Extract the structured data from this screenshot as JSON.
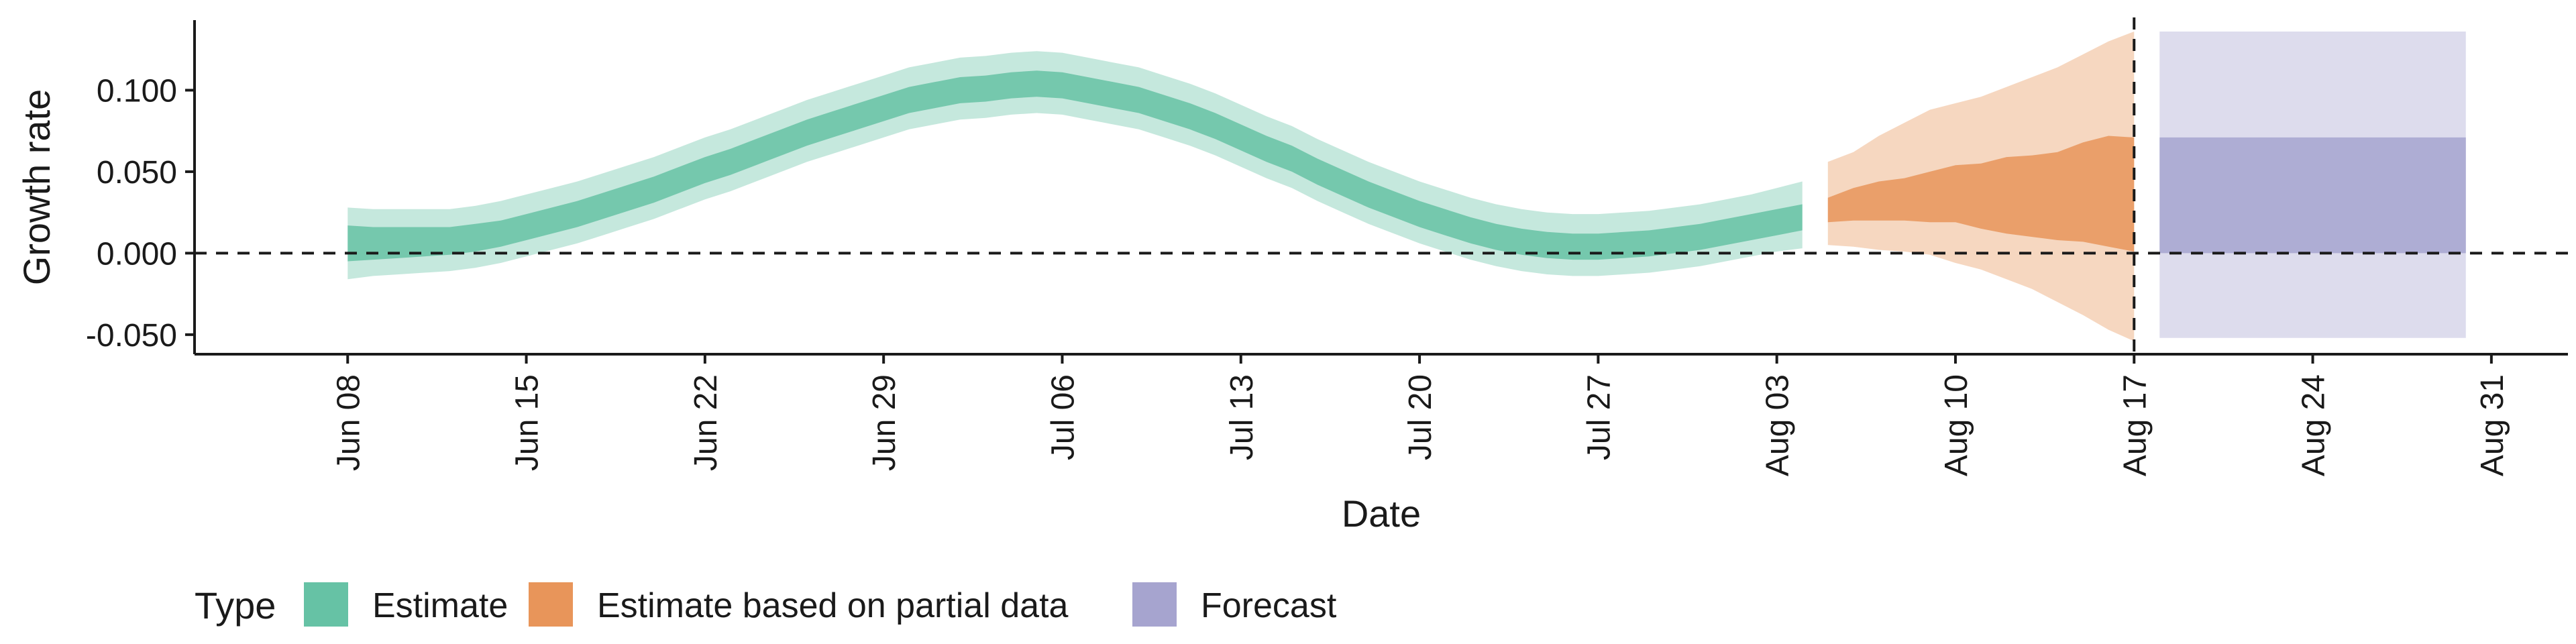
{
  "chart_data": {
    "type": "area",
    "title": "",
    "xlabel": "Date",
    "ylabel": "Growth rate",
    "ylim": [
      -0.062,
      0.143
    ],
    "xlim": [
      "2020-06-02",
      "2020-09-03"
    ],
    "y_ticks": [
      -0.05,
      0.0,
      0.05,
      0.1
    ],
    "y_tick_labels": [
      "-0.050",
      "0.000",
      "0.050",
      "0.100"
    ],
    "x_ticks": [
      "2020-06-08",
      "2020-06-15",
      "2020-06-22",
      "2020-06-29",
      "2020-07-06",
      "2020-07-13",
      "2020-07-20",
      "2020-07-27",
      "2020-08-03",
      "2020-08-10",
      "2020-08-17",
      "2020-08-24",
      "2020-08-31"
    ],
    "x_tick_labels": [
      "Jun 08",
      "Jun 15",
      "Jun 22",
      "Jun 29",
      "Jul 06",
      "Jul 13",
      "Jul 20",
      "Jul 27",
      "Aug 03",
      "Aug 10",
      "Aug 17",
      "Aug 24",
      "Aug 31"
    ],
    "reference_lines": [
      {
        "axis": "y",
        "value": 0.0,
        "style": "dashed"
      },
      {
        "axis": "x",
        "value": "2020-08-17",
        "style": "dashed"
      }
    ],
    "grid": false,
    "legend": {
      "title": "Type",
      "position": "bottom-left",
      "entries": [
        {
          "label": "Estimate",
          "color": "#66c2a5"
        },
        {
          "label": "Estimate based on partial data",
          "color": "#e8955a"
        },
        {
          "label": "Forecast",
          "color": "#a6a4cf"
        }
      ]
    },
    "series": [
      {
        "name": "Estimate",
        "color": "#66c2a5",
        "x": [
          "2020-06-08",
          "2020-06-09",
          "2020-06-10",
          "2020-06-11",
          "2020-06-12",
          "2020-06-13",
          "2020-06-14",
          "2020-06-15",
          "2020-06-16",
          "2020-06-17",
          "2020-06-18",
          "2020-06-19",
          "2020-06-20",
          "2020-06-21",
          "2020-06-22",
          "2020-06-23",
          "2020-06-24",
          "2020-06-25",
          "2020-06-26",
          "2020-06-27",
          "2020-06-28",
          "2020-06-29",
          "2020-06-30",
          "2020-07-01",
          "2020-07-02",
          "2020-07-03",
          "2020-07-04",
          "2020-07-05",
          "2020-07-06",
          "2020-07-07",
          "2020-07-08",
          "2020-07-09",
          "2020-07-10",
          "2020-07-11",
          "2020-07-12",
          "2020-07-13",
          "2020-07-14",
          "2020-07-15",
          "2020-07-16",
          "2020-07-17",
          "2020-07-18",
          "2020-07-19",
          "2020-07-20",
          "2020-07-21",
          "2020-07-22",
          "2020-07-23",
          "2020-07-24",
          "2020-07-25",
          "2020-07-26",
          "2020-07-27",
          "2020-07-28",
          "2020-07-29",
          "2020-07-30",
          "2020-07-31",
          "2020-08-01",
          "2020-08-02",
          "2020-08-03",
          "2020-08-04"
        ],
        "lower_90": [
          -0.016,
          -0.014,
          -0.013,
          -0.012,
          -0.011,
          -0.009,
          -0.006,
          -0.002,
          0.002,
          0.006,
          0.011,
          0.016,
          0.021,
          0.027,
          0.033,
          0.038,
          0.044,
          0.05,
          0.056,
          0.061,
          0.066,
          0.071,
          0.076,
          0.079,
          0.082,
          0.083,
          0.085,
          0.086,
          0.085,
          0.082,
          0.079,
          0.076,
          0.071,
          0.066,
          0.06,
          0.053,
          0.046,
          0.04,
          0.032,
          0.025,
          0.018,
          0.012,
          0.006,
          0.001,
          -0.004,
          -0.008,
          -0.011,
          -0.013,
          -0.014,
          -0.014,
          -0.013,
          -0.012,
          -0.01,
          -0.008,
          -0.005,
          -0.002,
          0.001,
          0.003
        ],
        "lower_50": [
          -0.005,
          -0.004,
          -0.003,
          -0.002,
          -0.001,
          0.001,
          0.004,
          0.008,
          0.012,
          0.016,
          0.021,
          0.026,
          0.031,
          0.037,
          0.043,
          0.048,
          0.054,
          0.06,
          0.066,
          0.071,
          0.076,
          0.081,
          0.086,
          0.089,
          0.092,
          0.093,
          0.095,
          0.096,
          0.095,
          0.092,
          0.089,
          0.086,
          0.081,
          0.076,
          0.07,
          0.063,
          0.056,
          0.05,
          0.042,
          0.035,
          0.028,
          0.022,
          0.016,
          0.011,
          0.006,
          0.002,
          -0.001,
          -0.003,
          -0.004,
          -0.004,
          -0.003,
          -0.002,
          0.0,
          0.002,
          0.005,
          0.008,
          0.011,
          0.014
        ],
        "upper_50": [
          0.017,
          0.016,
          0.016,
          0.016,
          0.016,
          0.018,
          0.02,
          0.024,
          0.028,
          0.032,
          0.037,
          0.042,
          0.047,
          0.053,
          0.059,
          0.064,
          0.07,
          0.076,
          0.082,
          0.087,
          0.092,
          0.097,
          0.102,
          0.105,
          0.108,
          0.109,
          0.111,
          0.112,
          0.111,
          0.108,
          0.105,
          0.102,
          0.097,
          0.092,
          0.086,
          0.079,
          0.072,
          0.066,
          0.058,
          0.051,
          0.044,
          0.038,
          0.032,
          0.027,
          0.022,
          0.018,
          0.015,
          0.013,
          0.012,
          0.012,
          0.013,
          0.014,
          0.016,
          0.018,
          0.021,
          0.024,
          0.027,
          0.03
        ],
        "upper_90": [
          0.028,
          0.027,
          0.027,
          0.027,
          0.027,
          0.029,
          0.032,
          0.036,
          0.04,
          0.044,
          0.049,
          0.054,
          0.059,
          0.065,
          0.071,
          0.076,
          0.082,
          0.088,
          0.094,
          0.099,
          0.104,
          0.109,
          0.114,
          0.117,
          0.12,
          0.121,
          0.123,
          0.124,
          0.123,
          0.12,
          0.117,
          0.114,
          0.109,
          0.104,
          0.098,
          0.091,
          0.084,
          0.078,
          0.07,
          0.063,
          0.056,
          0.05,
          0.044,
          0.039,
          0.034,
          0.03,
          0.027,
          0.025,
          0.024,
          0.024,
          0.025,
          0.026,
          0.028,
          0.03,
          0.033,
          0.036,
          0.04,
          0.044
        ]
      },
      {
        "name": "Estimate based on partial data",
        "color": "#e8955a",
        "x": [
          "2020-08-05",
          "2020-08-06",
          "2020-08-07",
          "2020-08-08",
          "2020-08-09",
          "2020-08-10",
          "2020-08-11",
          "2020-08-12",
          "2020-08-13",
          "2020-08-14",
          "2020-08-15",
          "2020-08-16",
          "2020-08-17"
        ],
        "lower_90": [
          0.005,
          0.004,
          0.002,
          0.001,
          -0.001,
          -0.006,
          -0.01,
          -0.016,
          -0.022,
          -0.03,
          -0.038,
          -0.047,
          -0.054
        ],
        "lower_50": [
          0.019,
          0.02,
          0.02,
          0.02,
          0.019,
          0.019,
          0.015,
          0.012,
          0.01,
          0.008,
          0.007,
          0.004,
          0.001
        ],
        "upper_50": [
          0.034,
          0.04,
          0.044,
          0.046,
          0.05,
          0.054,
          0.055,
          0.059,
          0.06,
          0.062,
          0.068,
          0.072,
          0.071
        ],
        "upper_90": [
          0.056,
          0.062,
          0.072,
          0.08,
          0.088,
          0.092,
          0.096,
          0.102,
          0.108,
          0.114,
          0.122,
          0.13,
          0.136
        ]
      },
      {
        "name": "Forecast",
        "color": "#a6a4cf",
        "x": [
          "2020-08-18",
          "2020-08-30"
        ],
        "lower_90": [
          -0.052,
          -0.052
        ],
        "lower_50": [
          0.0,
          0.0
        ],
        "upper_50": [
          0.071,
          0.071
        ],
        "upper_90": [
          0.136,
          0.136
        ]
      }
    ]
  }
}
